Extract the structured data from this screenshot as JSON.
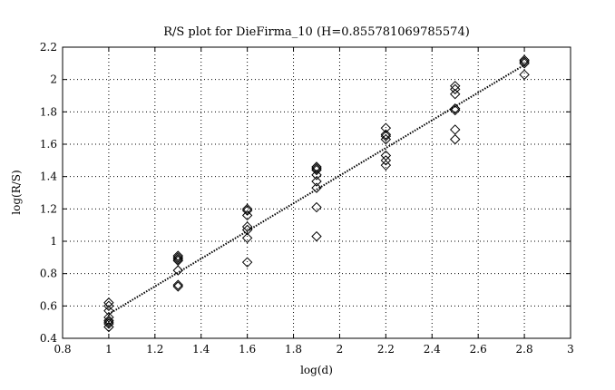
{
  "chart_data": {
    "type": "scatter",
    "title": "R/S plot for DieFirma_10 (H=0.855781069785574)",
    "xlabel": "log(d)",
    "ylabel": "log(R/S)",
    "xlim": [
      0.8,
      3
    ],
    "ylim": [
      0.4,
      2.2
    ],
    "xticks": [
      0.8,
      1,
      1.2,
      1.4,
      1.6,
      1.8,
      2,
      2.2,
      2.4,
      2.6,
      2.8,
      3
    ],
    "xtick_labels": [
      "0.8",
      "1",
      "1.2",
      "1.4",
      "1.6",
      "1.8",
      "2",
      "2.2",
      "2.4",
      "2.6",
      "2.8",
      "3"
    ],
    "yticks": [
      0.4,
      0.6,
      0.8,
      1,
      1.2,
      1.4,
      1.6,
      1.8,
      2,
      2.2
    ],
    "ytick_labels": [
      "0.4",
      "0.6",
      "0.8",
      "1",
      "1.2",
      "1.4",
      "1.6",
      "1.8",
      "2",
      "2.2"
    ],
    "grid": true,
    "marker": "diamond",
    "series": [
      {
        "points": [
          [
            1.0,
            0.62
          ],
          [
            1.0,
            0.6
          ],
          [
            1.0,
            0.57
          ],
          [
            1.0,
            0.53
          ],
          [
            1.0,
            0.51
          ],
          [
            1.0,
            0.5
          ],
          [
            1.0,
            0.49
          ],
          [
            1.0,
            0.47
          ],
          [
            1.3,
            0.91
          ],
          [
            1.3,
            0.9
          ],
          [
            1.3,
            0.89
          ],
          [
            1.3,
            0.88
          ],
          [
            1.3,
            0.82
          ],
          [
            1.3,
            0.73
          ],
          [
            1.3,
            0.72
          ],
          [
            1.6,
            1.2
          ],
          [
            1.6,
            1.19
          ],
          [
            1.6,
            1.16
          ],
          [
            1.6,
            1.09
          ],
          [
            1.6,
            1.07
          ],
          [
            1.6,
            1.02
          ],
          [
            1.6,
            0.87
          ],
          [
            1.9,
            1.46
          ],
          [
            1.9,
            1.45
          ],
          [
            1.9,
            1.44
          ],
          [
            1.9,
            1.41
          ],
          [
            1.9,
            1.37
          ],
          [
            1.9,
            1.33
          ],
          [
            1.9,
            1.21
          ],
          [
            1.9,
            1.03
          ],
          [
            2.2,
            1.7
          ],
          [
            2.2,
            1.66
          ],
          [
            2.2,
            1.65
          ],
          [
            2.2,
            1.63
          ],
          [
            2.2,
            1.53
          ],
          [
            2.2,
            1.5
          ],
          [
            2.2,
            1.47
          ],
          [
            2.5,
            1.96
          ],
          [
            2.5,
            1.94
          ],
          [
            2.5,
            1.91
          ],
          [
            2.5,
            1.82
          ],
          [
            2.5,
            1.81
          ],
          [
            2.5,
            1.69
          ],
          [
            2.5,
            1.63
          ],
          [
            2.8,
            2.12
          ],
          [
            2.8,
            2.11
          ],
          [
            2.8,
            2.1
          ],
          [
            2.8,
            2.03
          ]
        ]
      }
    ],
    "fit_line": {
      "x": [
        1.0,
        2.8
      ],
      "y": [
        0.55,
        2.09
      ],
      "style": "dotted"
    }
  }
}
